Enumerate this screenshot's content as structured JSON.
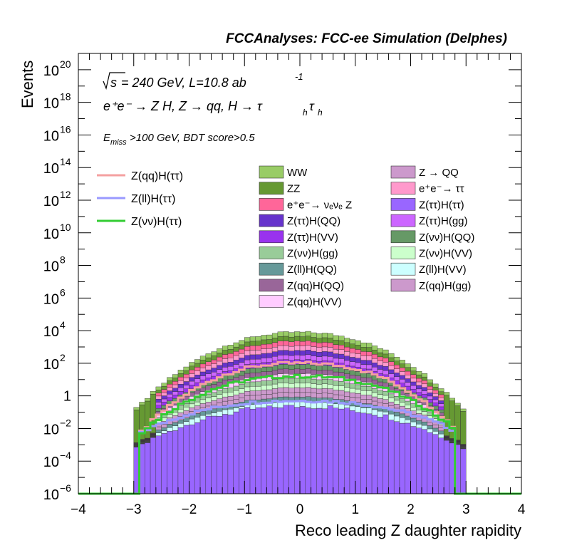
{
  "header_title": "FCCAnalyses: FCC-ee Simulation (Delphes)",
  "annotations": {
    "energy": "= 240 GeV, L=10.8 ab",
    "sqrt_s": "s",
    "lumi_exp": "-1",
    "process": "e⁺e⁻ → Z H, Z  → qq, H  → τ",
    "process_sub": "h",
    "process_tail": "τ",
    "process_sub2": "h",
    "cut_prefix": "E",
    "cut_sub": "miss",
    "cut_text": ">100 GeV, BDT score>0.5"
  },
  "chart_data": {
    "type": "histogram",
    "xlabel": "Reco leading Z daughter rapidity",
    "ylabel": "Events",
    "xlim": [
      -4,
      4
    ],
    "ylim_log10": [
      -6,
      21
    ],
    "log_y": true,
    "bin_width": 0.1,
    "x_ticks": [
      "−4",
      "−3",
      "−2",
      "−1",
      "0",
      "1",
      "2",
      "3",
      "4"
    ],
    "y_ticks": [
      {
        "exp": -6,
        "label": "10",
        "sup": "−6"
      },
      {
        "exp": -4,
        "label": "10",
        "sup": "−4"
      },
      {
        "exp": -2,
        "label": "10",
        "sup": "−2"
      },
      {
        "exp": 0,
        "label": "1",
        "sup": ""
      },
      {
        "exp": 2,
        "label": "10",
        "sup": "2"
      },
      {
        "exp": 4,
        "label": "10",
        "sup": "4"
      },
      {
        "exp": 6,
        "label": "10",
        "sup": "6"
      },
      {
        "exp": 8,
        "label": "10",
        "sup": "8"
      },
      {
        "exp": 10,
        "label": "10",
        "sup": "10"
      },
      {
        "exp": 12,
        "label": "10",
        "sup": "12"
      },
      {
        "exp": 14,
        "label": "10",
        "sup": "14"
      },
      {
        "exp": 16,
        "label": "10",
        "sup": "16"
      },
      {
        "exp": 18,
        "label": "10",
        "sup": "18"
      },
      {
        "exp": 20,
        "label": "10",
        "sup": "20"
      }
    ],
    "stack_order_bottom_to_top": [
      "Z(ττ)H(ττ)",
      "Z(ll)H(VV)",
      "Z(ll)H(QQ)",
      "Z(qq)H(gg)",
      "Z → QQ",
      "Z(νν)H(VV)",
      "Z(νν)H(gg)",
      "Z(qq)H(VV)",
      "Z(qq)H(QQ)",
      "Z(νν)H(QQ)",
      "Z(ττ)H(VV)",
      "Z(ττ)H(gg)",
      "Z(ττ)H(QQ)",
      "e⁺e⁻→ ττ",
      "e⁺e⁻→ νₑνₑ Z",
      "ZZ",
      "WW"
    ],
    "stack_peak_log10_at_y0": 3.9,
    "stack_edge_log10_at_y2p9": -0.6,
    "signal_lines": [
      {
        "name": "Z(qq)H(ττ)",
        "color": "#f4a0a0",
        "peak_log10": 2.0
      },
      {
        "name": "Z(ll)H(ττ)",
        "color": "#9999ff",
        "peak_log10": -0.3
      },
      {
        "name": "Z(νν)H(ττ)",
        "color": "#33cc33",
        "peak_log10": 1.2
      }
    ],
    "legend": {
      "lines": [
        {
          "label": "Z(qq)H(ττ)",
          "color": "#f4a0a0"
        },
        {
          "label": "Z(ll)H(ττ)",
          "color": "#9999ff"
        },
        {
          "label": "Z(νν)H(ττ)",
          "color": "#33cc33"
        }
      ],
      "col1": [
        {
          "label": "WW",
          "color": "#99cc66"
        },
        {
          "label": "ZZ",
          "color": "#669933"
        },
        {
          "label": "e⁺e⁻→ νₑνₑ Z",
          "color": "#ff6699"
        },
        {
          "label": "Z(ττ)H(QQ)",
          "color": "#6633cc"
        },
        {
          "label": "Z(ττ)H(VV)",
          "color": "#9933ee"
        },
        {
          "label": "Z(νν)H(gg)",
          "color": "#99cc99"
        },
        {
          "label": "Z(ll)H(QQ)",
          "color": "#669999"
        },
        {
          "label": "Z(qq)H(QQ)",
          "color": "#996699"
        },
        {
          "label": "Z(qq)H(VV)",
          "color": "#ffccff"
        }
      ],
      "col2": [
        {
          "label": "Z → QQ",
          "color": "#cc99cc"
        },
        {
          "label": "e⁺e⁻→ ττ",
          "color": "#ff99cc"
        },
        {
          "label": "Z(ττ)H(ττ)",
          "color": "#9966ff"
        },
        {
          "label": "Z(ττ)H(gg)",
          "color": "#cc66ff"
        },
        {
          "label": "Z(νν)H(QQ)",
          "color": "#669966"
        },
        {
          "label": "Z(νν)H(VV)",
          "color": "#ccffcc"
        },
        {
          "label": "Z(ll)H(VV)",
          "color": "#ccffff"
        },
        {
          "label": "Z(qq)H(gg)",
          "color": "#cc99cc"
        }
      ]
    }
  }
}
